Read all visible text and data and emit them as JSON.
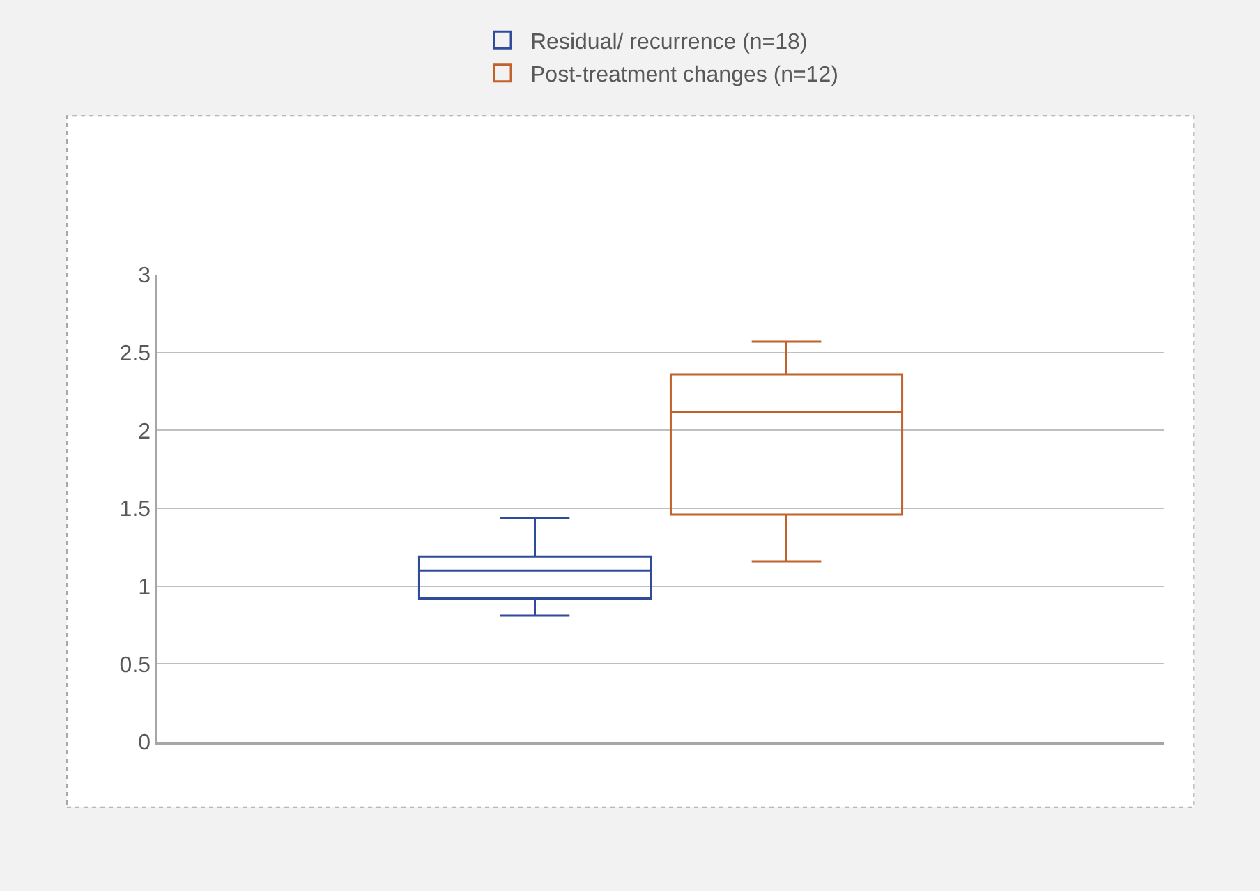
{
  "chart_data": {
    "type": "box",
    "categories": [
      null
    ],
    "series": [
      {
        "name": "Residual/ recurrence (n=18)",
        "color": "#2f4b9c",
        "boxes": [
          {
            "low": 0.81,
            "q1": 0.92,
            "median": 1.1,
            "q3": 1.19,
            "high": 1.44
          }
        ]
      },
      {
        "name": "Post-treatment changes (n=12)",
        "color": "#c0622a",
        "boxes": [
          {
            "low": 1.16,
            "q1": 1.46,
            "median": 2.12,
            "q3": 2.36,
            "high": 2.57
          }
        ]
      }
    ],
    "ylim": [
      0,
      3
    ],
    "yticks": [
      0,
      0.5,
      1,
      1.5,
      2,
      2.5,
      3
    ],
    "grid": "y",
    "legend": "top",
    "tick_labels": "y"
  }
}
